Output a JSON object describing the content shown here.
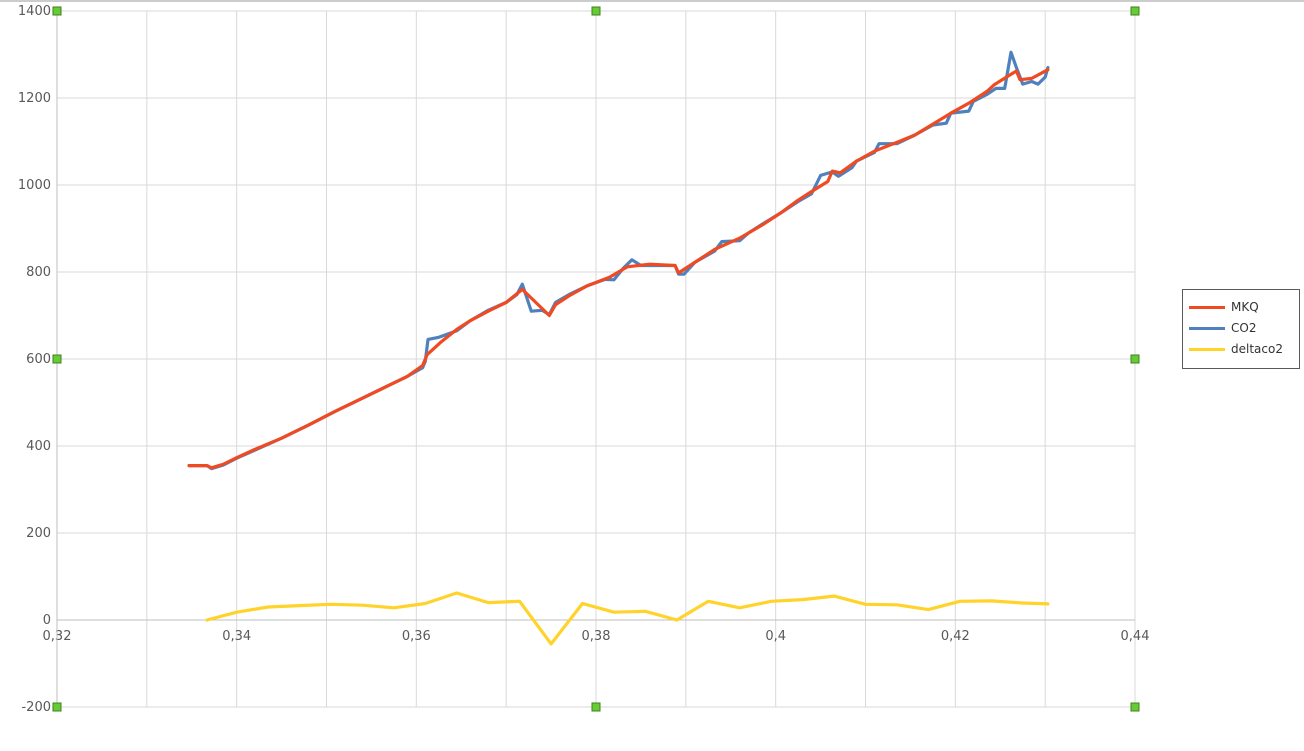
{
  "chart_data": {
    "type": "line",
    "title": "",
    "xlabel": "",
    "ylabel": "",
    "xlim": [
      0.32,
      0.44
    ],
    "ylim": [
      -200,
      1400
    ],
    "x_ticks": [
      "0,32",
      "0,34",
      "0,36",
      "0,38",
      "0,4",
      "0,42",
      "0,44"
    ],
    "y_ticks": [
      "-200",
      "0",
      "200",
      "400",
      "600",
      "800",
      "1000",
      "1200",
      "1400"
    ],
    "grid": true,
    "legend_position": "right",
    "series": [
      {
        "name": "MKQ",
        "color": "#f04a23",
        "points": [
          [
            0.3347,
            355
          ],
          [
            0.3367,
            355
          ],
          [
            0.3372,
            350
          ],
          [
            0.3385,
            358
          ],
          [
            0.34,
            373
          ],
          [
            0.342,
            392
          ],
          [
            0.345,
            418
          ],
          [
            0.348,
            448
          ],
          [
            0.351,
            480
          ],
          [
            0.354,
            510
          ],
          [
            0.357,
            540
          ],
          [
            0.359,
            560
          ],
          [
            0.3607,
            585
          ],
          [
            0.3612,
            610
          ],
          [
            0.3628,
            640
          ],
          [
            0.3645,
            668
          ],
          [
            0.366,
            688
          ],
          [
            0.368,
            710
          ],
          [
            0.37,
            730
          ],
          [
            0.3718,
            760
          ],
          [
            0.3748,
            700
          ],
          [
            0.3755,
            725
          ],
          [
            0.377,
            745
          ],
          [
            0.379,
            768
          ],
          [
            0.3815,
            788
          ],
          [
            0.3835,
            812
          ],
          [
            0.386,
            818
          ],
          [
            0.3888,
            815
          ],
          [
            0.3892,
            798
          ],
          [
            0.391,
            822
          ],
          [
            0.3932,
            852
          ],
          [
            0.396,
            878
          ],
          [
            0.3985,
            908
          ],
          [
            0.4005,
            935
          ],
          [
            0.4025,
            965
          ],
          [
            0.404,
            985
          ],
          [
            0.4058,
            1008
          ],
          [
            0.4063,
            1032
          ],
          [
            0.4072,
            1028
          ],
          [
            0.409,
            1055
          ],
          [
            0.411,
            1078
          ],
          [
            0.4135,
            1098
          ],
          [
            0.4155,
            1115
          ],
          [
            0.4175,
            1140
          ],
          [
            0.4195,
            1165
          ],
          [
            0.4215,
            1188
          ],
          [
            0.4235,
            1215
          ],
          [
            0.4243,
            1230
          ],
          [
            0.426,
            1252
          ],
          [
            0.4268,
            1262
          ],
          [
            0.4272,
            1242
          ],
          [
            0.4285,
            1245
          ],
          [
            0.4303,
            1265
          ]
        ]
      },
      {
        "name": "CO2",
        "color": "#4f81bd",
        "points": [
          [
            0.3347,
            355
          ],
          [
            0.3367,
            355
          ],
          [
            0.3372,
            348
          ],
          [
            0.3385,
            356
          ],
          [
            0.34,
            372
          ],
          [
            0.342,
            390
          ],
          [
            0.345,
            418
          ],
          [
            0.348,
            448
          ],
          [
            0.351,
            480
          ],
          [
            0.354,
            510
          ],
          [
            0.357,
            540
          ],
          [
            0.359,
            560
          ],
          [
            0.3607,
            580
          ],
          [
            0.361,
            595
          ],
          [
            0.3613,
            645
          ],
          [
            0.3625,
            650
          ],
          [
            0.3645,
            665
          ],
          [
            0.366,
            688
          ],
          [
            0.368,
            712
          ],
          [
            0.37,
            730
          ],
          [
            0.3712,
            748
          ],
          [
            0.3718,
            772
          ],
          [
            0.3728,
            710
          ],
          [
            0.374,
            712
          ],
          [
            0.3748,
            702
          ],
          [
            0.3755,
            730
          ],
          [
            0.377,
            748
          ],
          [
            0.379,
            768
          ],
          [
            0.381,
            783
          ],
          [
            0.382,
            782
          ],
          [
            0.383,
            808
          ],
          [
            0.384,
            828
          ],
          [
            0.385,
            815
          ],
          [
            0.3888,
            815
          ],
          [
            0.3892,
            795
          ],
          [
            0.3898,
            795
          ],
          [
            0.391,
            822
          ],
          [
            0.3932,
            848
          ],
          [
            0.394,
            870
          ],
          [
            0.396,
            872
          ],
          [
            0.397,
            890
          ],
          [
            0.3985,
            910
          ],
          [
            0.4005,
            935
          ],
          [
            0.4025,
            962
          ],
          [
            0.404,
            980
          ],
          [
            0.405,
            1022
          ],
          [
            0.4063,
            1030
          ],
          [
            0.407,
            1020
          ],
          [
            0.4085,
            1040
          ],
          [
            0.409,
            1055
          ],
          [
            0.411,
            1075
          ],
          [
            0.4115,
            1095
          ],
          [
            0.4135,
            1095
          ],
          [
            0.4155,
            1115
          ],
          [
            0.4175,
            1138
          ],
          [
            0.419,
            1142
          ],
          [
            0.4195,
            1165
          ],
          [
            0.4215,
            1170
          ],
          [
            0.422,
            1192
          ],
          [
            0.4235,
            1208
          ],
          [
            0.4245,
            1222
          ],
          [
            0.4255,
            1222
          ],
          [
            0.4262,
            1305
          ],
          [
            0.4268,
            1270
          ],
          [
            0.4275,
            1232
          ],
          [
            0.4285,
            1238
          ],
          [
            0.4292,
            1232
          ],
          [
            0.43,
            1248
          ],
          [
            0.4303,
            1270
          ]
        ]
      },
      {
        "name": "deltaco2",
        "color": "#ffd32a",
        "points": [
          [
            0.3367,
            0
          ],
          [
            0.34,
            18
          ],
          [
            0.3435,
            30
          ],
          [
            0.347,
            33
          ],
          [
            0.3505,
            36
          ],
          [
            0.354,
            34
          ],
          [
            0.3575,
            28
          ],
          [
            0.361,
            38
          ],
          [
            0.3645,
            62
          ],
          [
            0.368,
            40
          ],
          [
            0.3715,
            43
          ],
          [
            0.375,
            -55
          ],
          [
            0.3785,
            38
          ],
          [
            0.382,
            18
          ],
          [
            0.3855,
            20
          ],
          [
            0.389,
            0
          ],
          [
            0.3925,
            43
          ],
          [
            0.396,
            28
          ],
          [
            0.3995,
            43
          ],
          [
            0.403,
            47
          ],
          [
            0.4065,
            55
          ],
          [
            0.41,
            36
          ],
          [
            0.4135,
            35
          ],
          [
            0.417,
            24
          ],
          [
            0.4205,
            43
          ],
          [
            0.424,
            44
          ],
          [
            0.4275,
            39
          ],
          [
            0.4303,
            37
          ]
        ]
      }
    ]
  },
  "colors": {
    "grid": "#d9d9d9",
    "axis": "#bfbfbf",
    "handle_fill": "#66cc33",
    "handle_stroke": "#3f7f1f"
  }
}
